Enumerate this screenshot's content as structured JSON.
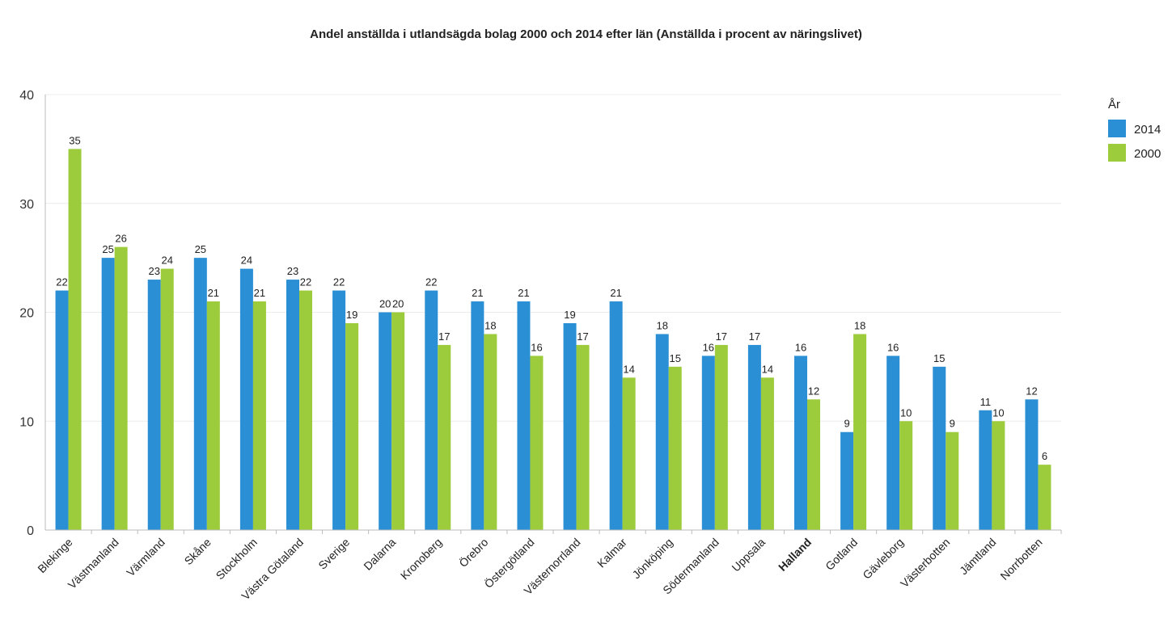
{
  "chart_data": {
    "type": "bar",
    "title": "Andel anställda i utlandsägda bolag 2000 och 2014 efter län (Anställda i procent av näringslivet)",
    "xlabel": "",
    "ylabel": "",
    "ylim": [
      0,
      40
    ],
    "yticks": [
      0,
      10,
      20,
      30,
      40
    ],
    "grid": true,
    "legend_title": "År",
    "legend_position": "right",
    "categories": [
      "Blekinge",
      "Västmanland",
      "Värmland",
      "Skåne",
      "Stockholm",
      "Västra Götaland",
      "Sverige",
      "Dalarna",
      "Kronoberg",
      "Örebro",
      "Östergötland",
      "Västernorrland",
      "Kalmar",
      "Jönköping",
      "Södermanland",
      "Uppsala",
      "Halland",
      "Gotland",
      "Gävleborg",
      "Västerbotten",
      "Jämtland",
      "Norrbotten"
    ],
    "highlight_category": "Halland",
    "highlight_color": "#e8202a",
    "series": [
      {
        "name": "2014",
        "color": "#2a8fd4",
        "values": [
          22,
          25,
          23,
          25,
          24,
          23,
          22,
          20,
          22,
          21,
          21,
          19,
          21,
          18,
          16,
          17,
          16,
          9,
          16,
          15,
          11,
          12
        ]
      },
      {
        "name": "2000",
        "color": "#9ccc3c",
        "values": [
          35,
          26,
          24,
          21,
          21,
          22,
          19,
          20,
          17,
          18,
          16,
          17,
          14,
          15,
          17,
          14,
          12,
          18,
          10,
          9,
          10,
          6
        ]
      }
    ]
  }
}
